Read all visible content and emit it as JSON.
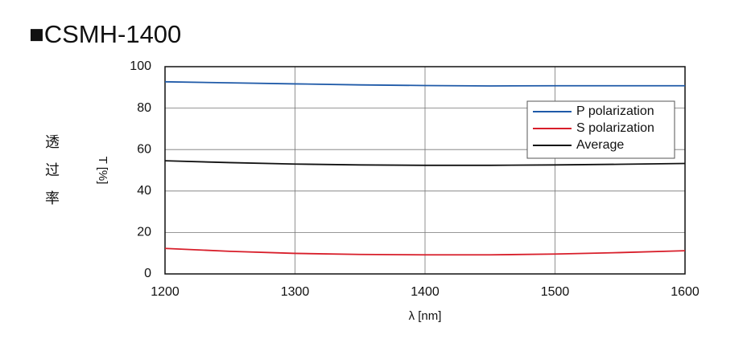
{
  "chart_data": {
    "type": "line",
    "title": "■CSMH-1400",
    "side_label": [
      "透",
      "过",
      "率"
    ],
    "y_label": "T [%]",
    "x_label": "λ [nm]",
    "x": [
      1200,
      1250,
      1300,
      1350,
      1400,
      1450,
      1500,
      1550,
      1600
    ],
    "series": [
      {
        "name": "P polarization",
        "color": "#1f5aa8",
        "values": [
          92.7,
          92.2,
          91.7,
          91.2,
          90.9,
          90.7,
          90.8,
          90.8,
          90.8
        ]
      },
      {
        "name": "S polarization",
        "color": "#d81e2a",
        "values": [
          12.3,
          10.9,
          9.9,
          9.4,
          9.2,
          9.2,
          9.6,
          10.3,
          11.2
        ]
      },
      {
        "name": "Average",
        "color": "#111111",
        "values": [
          54.6,
          53.7,
          53.0,
          52.6,
          52.4,
          52.4,
          52.6,
          52.9,
          53.3
        ]
      }
    ],
    "xlim": [
      1200,
      1600
    ],
    "xticks": [
      1200,
      1300,
      1400,
      1500,
      1600
    ],
    "ylim": [
      0,
      100
    ],
    "yticks": [
      0,
      20,
      40,
      60,
      80,
      100
    ],
    "grid": true,
    "legend": "upper right"
  }
}
